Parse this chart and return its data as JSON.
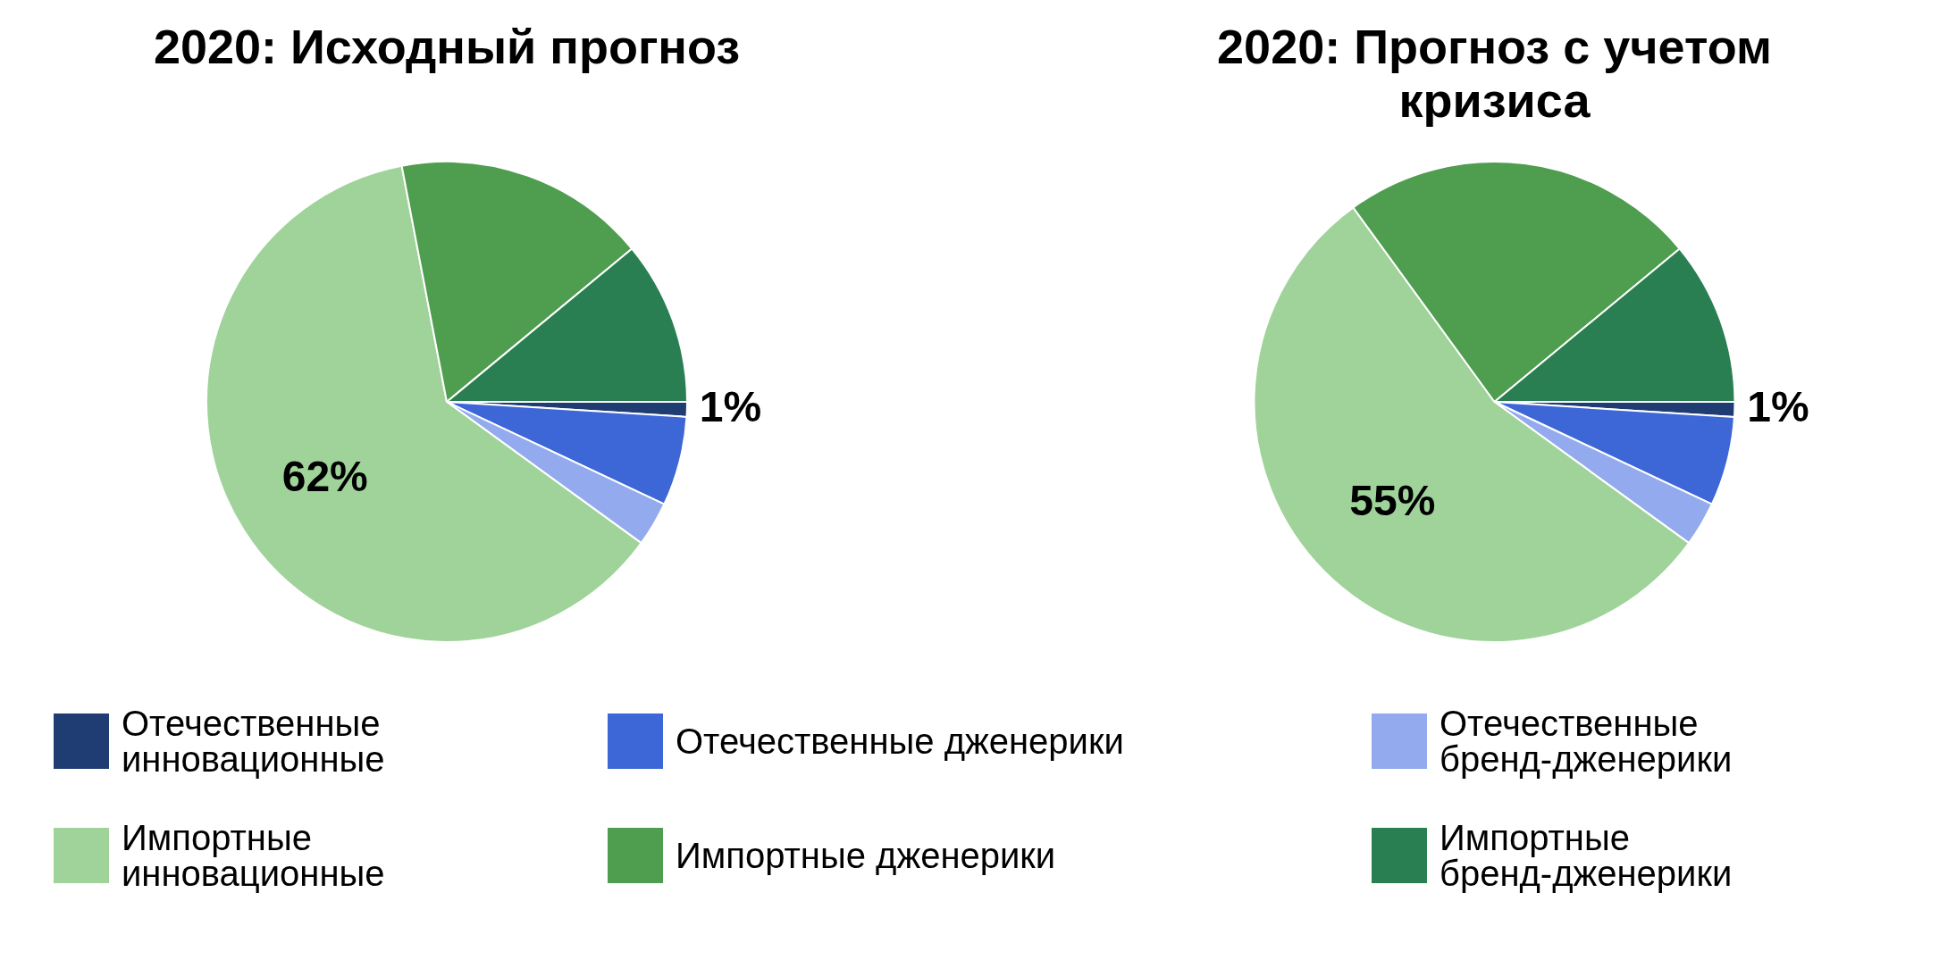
{
  "chart_data": [
    {
      "type": "pie",
      "title": "2020: Исходный прогноз",
      "categories": [
        "Отечественные инновационные",
        "Отечественные дженерики",
        "Отечественные бренд-дженерики",
        "Импортные инновационные",
        "Импортные дженерики",
        "Импортные бренд-дженерики"
      ],
      "values": [
        1,
        6,
        3,
        62,
        17,
        11
      ],
      "colors": [
        "#1f3d73",
        "#3d66d6",
        "#93abee",
        "#9fd39a",
        "#4f9d4f",
        "#2a7f52"
      ],
      "value_labels": [
        "1%",
        null,
        null,
        "62%",
        null,
        null
      ],
      "legend": "bottom"
    },
    {
      "type": "pie",
      "title": "2020: Прогноз с учетом кризиса",
      "categories": [
        null,
        null,
        null,
        null,
        null,
        null
      ],
      "values": [
        1,
        6,
        3,
        55,
        24,
        11
      ],
      "colors": [
        "#1f3d73",
        "#3d66d6",
        "#93abee",
        "#9fd39a",
        "#4f9d4f",
        "#2a7f52"
      ],
      "value_labels": [
        "1%",
        null,
        null,
        "55%",
        null,
        null
      ]
    }
  ]
}
